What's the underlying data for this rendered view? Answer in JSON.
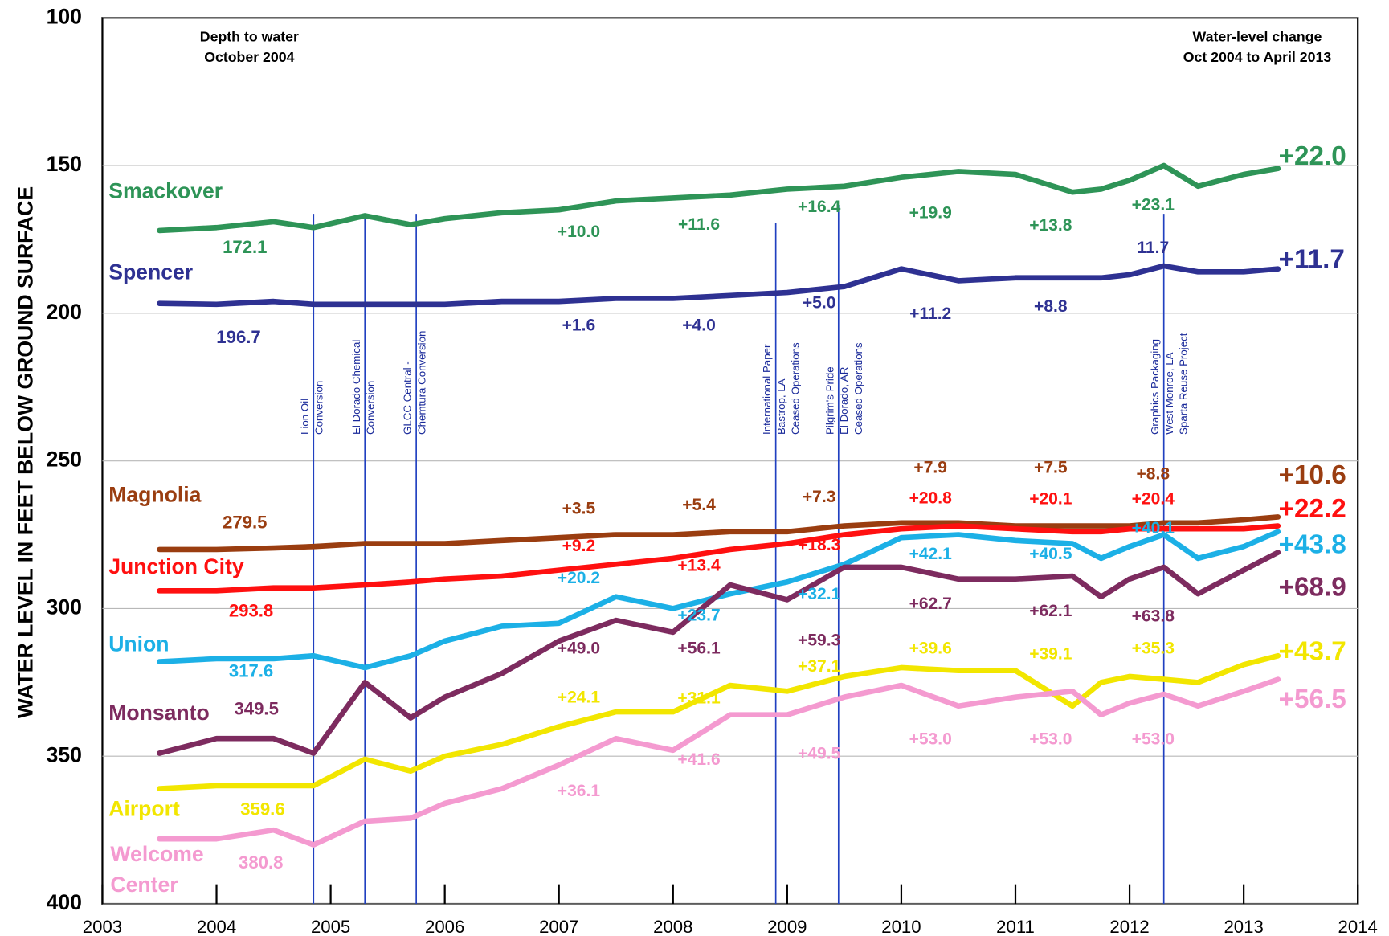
{
  "chart_data": {
    "type": "line",
    "y_label": "WATER LEVEL IN FEET BELOW GROUND SURFACE",
    "left_note": [
      "Depth to water",
      "October 2004"
    ],
    "right_note": [
      "Water-level change",
      "Oct  2004 to April 2013"
    ],
    "xlim": [
      2003,
      2014
    ],
    "xticks": [
      2003,
      2004,
      2005,
      2006,
      2007,
      2008,
      2009,
      2010,
      2011,
      2012,
      2013,
      2014
    ],
    "ylim": [
      100,
      400
    ],
    "y_inverted": true,
    "yticks": [
      100,
      150,
      200,
      250,
      300,
      350,
      400
    ],
    "grid": true,
    "x": [
      2003.5,
      2004,
      2004.5,
      2004.85,
      2005.3,
      2005.7,
      2006,
      2006.5,
      2007,
      2007.5,
      2008,
      2008.5,
      2009,
      2009.5,
      2010,
      2010.5,
      2011,
      2011.5,
      2011.75,
      2012,
      2012.3,
      2012.6,
      2013,
      2013.3
    ],
    "series": [
      {
        "name": "Smackover",
        "color": "#2e9457",
        "values": [
          172,
          171,
          169,
          171,
          167,
          170,
          168,
          166,
          165,
          162,
          161,
          160,
          158,
          157,
          154,
          152,
          153,
          159,
          158,
          155,
          150,
          157,
          153,
          151
        ],
        "labels": [
          "172.1",
          "+10.0",
          "+11.6",
          "+16.4",
          "+19.9",
          "+13.8",
          "+23.1",
          "+22.0"
        ]
      },
      {
        "name": "Spencer",
        "color": "#2e3192",
        "values": [
          196.7,
          197,
          196,
          197,
          197,
          197,
          197,
          196,
          196,
          195,
          195,
          194,
          193,
          191,
          185,
          189,
          188,
          188,
          188,
          187,
          184,
          186,
          186,
          185
        ],
        "labels": [
          "196.7",
          "+1.6",
          "+4.0",
          "+5.0",
          "+11.2",
          "+8.8",
          "11.7",
          "+11.7"
        ]
      },
      {
        "name": "Magnolia",
        "color": "#9a3d10",
        "values": [
          280,
          280,
          279.5,
          279,
          278,
          278,
          278,
          277,
          276,
          275,
          275,
          274,
          274,
          272,
          271,
          271,
          272,
          272,
          272,
          272,
          271,
          271,
          270,
          269
        ],
        "labels": [
          "279.5",
          "+3.5",
          "+5.4",
          "+7.3",
          "+7.9",
          "+7.5",
          "+8.8",
          "+10.6"
        ]
      },
      {
        "name": "Junction City",
        "color": "#ff1010",
        "values": [
          294,
          294,
          293,
          293,
          292,
          291,
          290,
          289,
          287,
          285,
          283,
          280,
          278,
          275,
          273,
          272,
          273,
          274,
          274,
          273,
          273,
          273,
          273,
          272
        ],
        "labels": [
          "293.8",
          "+9.2",
          "+13.4",
          "+18.3",
          "+20.8",
          "+20.1",
          "+20.4",
          "+22.2"
        ]
      },
      {
        "name": "Union",
        "color": "#1cb0e6",
        "values": [
          318,
          317,
          317,
          316,
          320,
          316,
          311,
          306,
          305,
          296,
          300,
          295,
          291,
          285,
          276,
          275,
          277,
          278,
          283,
          279,
          275,
          283,
          279,
          274
        ],
        "labels": [
          "317.6",
          "+20.2",
          "+23.7",
          "+32.1",
          "+42.1",
          "+40.5",
          "+40.1",
          "+43.8"
        ]
      },
      {
        "name": "Monsanto",
        "color": "#7d2b5f",
        "values": [
          349,
          344,
          344,
          349,
          325,
          337,
          330,
          322,
          311,
          304,
          308,
          292,
          297,
          286,
          286,
          290,
          290,
          289,
          296,
          290,
          286,
          295,
          287,
          281
        ],
        "labels": [
          "349.5",
          "+49.0",
          "+56.1",
          "+59.3",
          "+62.7",
          "+62.1",
          "+63.8",
          "+68.9"
        ]
      },
      {
        "name": "Airport",
        "color": "#f2e600",
        "values": [
          361,
          360,
          360,
          360,
          351,
          355,
          350,
          346,
          340,
          335,
          335,
          326,
          328,
          323,
          320,
          321,
          321,
          333,
          325,
          323,
          324,
          325,
          319,
          316
        ],
        "labels": [
          "359.6",
          "+24.1",
          "+31.1",
          "+37.1",
          "+39.6",
          "+39.1",
          "+35.3",
          "+43.7"
        ]
      },
      {
        "name": "Welcome Center",
        "color": "#f49ad0",
        "values": [
          378,
          378,
          375,
          380,
          372,
          371,
          366,
          361,
          353,
          344,
          348,
          336,
          336,
          330,
          326,
          333,
          330,
          328,
          336,
          332,
          329,
          333,
          328,
          324
        ],
        "labels": [
          "380.8",
          "+36.1",
          "+41.6",
          "+49.5",
          "+53.0",
          "+53.0",
          "+53.0",
          "+56.5"
        ]
      }
    ],
    "events": [
      {
        "x": 2004.85,
        "lines": [
          "Lion Oil",
          "Conversion"
        ]
      },
      {
        "x": 2005.3,
        "lines": [
          "El Dorado Chemical",
          "Conversion"
        ]
      },
      {
        "x": 2005.75,
        "lines": [
          "GLCC Central -",
          "Chemtura Conversion"
        ]
      },
      {
        "x": 2008.9,
        "lines": [
          "International Paper",
          "Bastrop, LA",
          "Ceased Operations"
        ]
      },
      {
        "x": 2009.45,
        "lines": [
          "Pilgrim's Pride",
          "El Dorado, AR",
          "Ceased Operations"
        ]
      },
      {
        "x": 2012.3,
        "lines": [
          "Graphics Packaging",
          "West Monroe, LA",
          "Sparta Reuse Project"
        ]
      }
    ]
  }
}
